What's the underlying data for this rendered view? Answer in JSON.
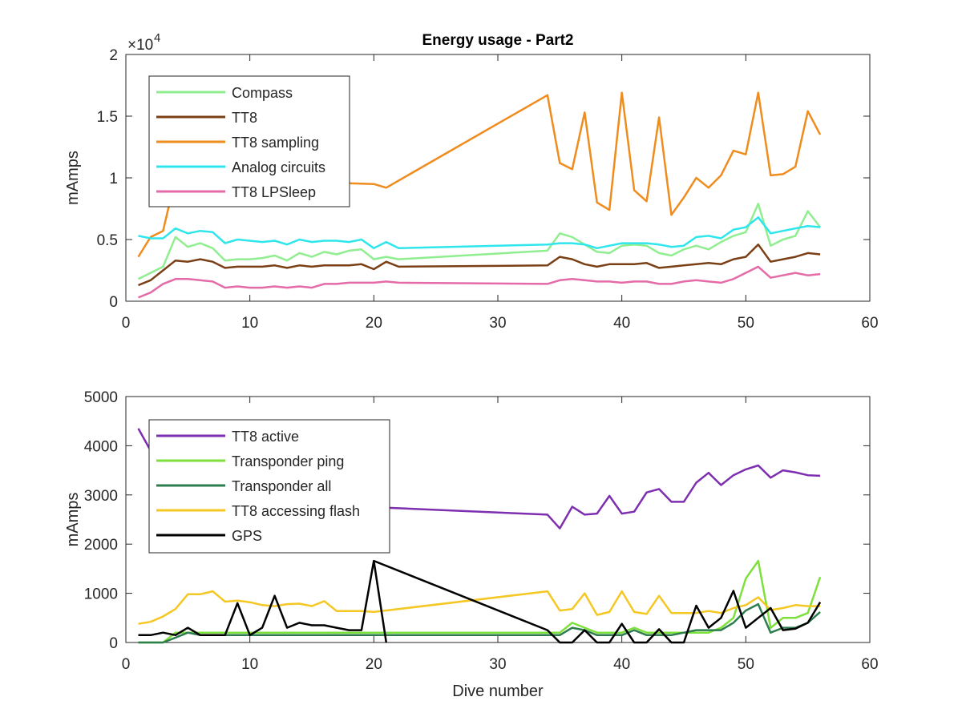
{
  "figure": {
    "title": "Energy usage - Part2",
    "xlabel": "Dive number"
  },
  "chart_data": [
    {
      "type": "line",
      "title": "Energy usage - Part2",
      "xlabel": "",
      "ylabel": "mAmps",
      "xlim": [
        0,
        60
      ],
      "ylim": [
        0,
        20000
      ],
      "xticks": [
        "0",
        "10",
        "20",
        "30",
        "40",
        "50",
        "60"
      ],
      "yticks": [
        "0",
        "0.5",
        "1",
        "1.5",
        "2"
      ],
      "exponent_label": "×10",
      "exponent_power": "4",
      "legend_position": "top-left",
      "grid": false,
      "series": [
        {
          "name": "Compass",
          "color": "#90ee90",
          "x": [
            1,
            2,
            3,
            4,
            5,
            6,
            7,
            8,
            9,
            10,
            11,
            12,
            13,
            14,
            15,
            16,
            17,
            18,
            19,
            20,
            21,
            22,
            34,
            35,
            36,
            37,
            38,
            39,
            40,
            41,
            42,
            43,
            44,
            45,
            46,
            47,
            48,
            49,
            50,
            51,
            52,
            53,
            54,
            55,
            56
          ],
          "y": [
            1800,
            2300,
            2800,
            5200,
            4400,
            4700,
            4300,
            3300,
            3400,
            3400,
            3500,
            3700,
            3300,
            3900,
            3600,
            4000,
            3800,
            4100,
            4200,
            3400,
            3600,
            3400,
            4100,
            5500,
            5200,
            4600,
            4000,
            3900,
            4500,
            4600,
            4500,
            3900,
            3700,
            4200,
            4500,
            4200,
            4800,
            5300,
            5600,
            7900,
            4500,
            5000,
            5300,
            7300,
            6000
          ]
        },
        {
          "name": "TT8",
          "color": "#7b3f16",
          "x": [
            1,
            2,
            3,
            4,
            5,
            6,
            7,
            8,
            9,
            10,
            11,
            12,
            13,
            14,
            15,
            16,
            17,
            18,
            19,
            20,
            21,
            22,
            34,
            35,
            36,
            37,
            38,
            39,
            40,
            41,
            42,
            43,
            44,
            45,
            46,
            47,
            48,
            49,
            50,
            51,
            52,
            53,
            54,
            55,
            56
          ],
          "y": [
            1300,
            1700,
            2500,
            3300,
            3200,
            3400,
            3200,
            2700,
            2800,
            2800,
            2800,
            2900,
            2700,
            2900,
            2800,
            2900,
            2900,
            2900,
            3000,
            2600,
            3200,
            2800,
            2900,
            3600,
            3400,
            3000,
            2800,
            3000,
            3000,
            3000,
            3100,
            2700,
            2800,
            2900,
            3000,
            3100,
            3000,
            3400,
            3600,
            4600,
            3200,
            3400,
            3600,
            3900,
            3800
          ]
        },
        {
          "name": "TT8 sampling",
          "color": "#ef8c1e",
          "x": [
            1,
            2,
            3,
            4,
            20,
            21,
            34,
            35,
            36,
            37,
            38,
            39,
            40,
            41,
            42,
            43,
            44,
            45,
            46,
            47,
            48,
            49,
            50,
            51,
            52,
            53,
            54,
            55,
            56
          ],
          "y": [
            3600,
            5200,
            5700,
            10000,
            9500,
            9200,
            16700,
            11200,
            10700,
            15300,
            8000,
            7400,
            16900,
            9000,
            8100,
            14900,
            7000,
            8400,
            10000,
            9200,
            10200,
            12200,
            11900,
            16900,
            10200,
            10300,
            10900,
            15400,
            13500
          ]
        },
        {
          "name": "Analog circuits",
          "color": "#2ee6ec",
          "x": [
            1,
            2,
            3,
            4,
            5,
            6,
            7,
            8,
            9,
            10,
            11,
            12,
            13,
            14,
            15,
            16,
            17,
            18,
            19,
            20,
            21,
            22,
            34,
            35,
            36,
            37,
            38,
            39,
            40,
            41,
            42,
            43,
            44,
            45,
            46,
            47,
            48,
            49,
            50,
            51,
            52,
            53,
            54,
            55,
            56
          ],
          "y": [
            5300,
            5100,
            5100,
            5900,
            5500,
            5700,
            5600,
            4700,
            5000,
            4900,
            4800,
            4900,
            4600,
            5000,
            4800,
            4900,
            4900,
            4800,
            5000,
            4300,
            4800,
            4300,
            4600,
            4700,
            4700,
            4600,
            4300,
            4500,
            4700,
            4700,
            4700,
            4600,
            4400,
            4500,
            5200,
            5300,
            5100,
            5800,
            6000,
            6800,
            5500,
            5700,
            5900,
            6100,
            6000
          ]
        },
        {
          "name": "TT8 LPSleep",
          "color": "#e46aa8",
          "x": [
            1,
            2,
            3,
            4,
            5,
            6,
            7,
            8,
            9,
            10,
            11,
            12,
            13,
            14,
            15,
            16,
            17,
            18,
            19,
            20,
            21,
            22,
            34,
            35,
            36,
            37,
            38,
            39,
            40,
            41,
            42,
            43,
            44,
            45,
            46,
            47,
            48,
            49,
            50,
            51,
            52,
            53,
            54,
            55,
            56
          ],
          "y": [
            300,
            700,
            1400,
            1800,
            1800,
            1700,
            1600,
            1100,
            1200,
            1100,
            1100,
            1200,
            1100,
            1200,
            1100,
            1400,
            1400,
            1500,
            1500,
            1500,
            1600,
            1500,
            1400,
            1700,
            1800,
            1700,
            1600,
            1600,
            1500,
            1600,
            1600,
            1400,
            1400,
            1600,
            1700,
            1600,
            1500,
            1800,
            2300,
            2800,
            1900,
            2100,
            2300,
            2100,
            2200
          ]
        }
      ]
    },
    {
      "type": "line",
      "title": "",
      "xlabel": "Dive number",
      "ylabel": "mAmps",
      "xlim": [
        0,
        60
      ],
      "ylim": [
        0,
        5000
      ],
      "xticks": [
        "0",
        "10",
        "20",
        "30",
        "40",
        "50",
        "60"
      ],
      "yticks": [
        "0",
        "1000",
        "2000",
        "3000",
        "4000",
        "5000"
      ],
      "legend_position": "top-left",
      "grid": false,
      "series": [
        {
          "name": "TT8 active",
          "color": "#7e2fb0",
          "x": [
            1,
            2,
            20,
            34,
            35,
            36,
            37,
            38,
            39,
            40,
            41,
            42,
            43,
            44,
            45,
            46,
            47,
            48,
            49,
            50,
            51,
            52,
            53,
            54,
            55,
            56
          ],
          "y": [
            4350,
            3900,
            2750,
            2600,
            2320,
            2760,
            2600,
            2620,
            2980,
            2620,
            2660,
            3050,
            3120,
            2860,
            2860,
            3250,
            3450,
            3200,
            3400,
            3520,
            3600,
            3350,
            3500,
            3460,
            3400,
            3390
          ]
        },
        {
          "name": "Transponder ping",
          "color": "#7ee03c",
          "x": [
            1,
            2,
            3,
            4,
            5,
            6,
            7,
            8,
            9,
            10,
            11,
            12,
            13,
            14,
            15,
            16,
            17,
            18,
            19,
            20,
            21,
            22,
            34,
            35,
            36,
            37,
            38,
            39,
            40,
            41,
            42,
            43,
            44,
            45,
            46,
            47,
            48,
            49,
            50,
            51,
            52,
            53,
            54,
            55,
            56
          ],
          "y": [
            0,
            0,
            0,
            200,
            200,
            200,
            200,
            200,
            200,
            200,
            200,
            200,
            200,
            200,
            200,
            200,
            200,
            200,
            200,
            200,
            200,
            200,
            200,
            200,
            400,
            300,
            200,
            200,
            200,
            300,
            200,
            200,
            200,
            200,
            200,
            200,
            300,
            500,
            1300,
            1660,
            300,
            500,
            500,
            600,
            1330
          ]
        },
        {
          "name": "Transponder all",
          "color": "#2e7d4f",
          "x": [
            1,
            2,
            3,
            4,
            5,
            6,
            7,
            8,
            9,
            10,
            11,
            12,
            13,
            14,
            15,
            16,
            17,
            18,
            19,
            20,
            21,
            22,
            34,
            35,
            36,
            37,
            38,
            39,
            40,
            41,
            42,
            43,
            44,
            45,
            46,
            47,
            48,
            49,
            50,
            51,
            52,
            53,
            54,
            55,
            56
          ],
          "y": [
            0,
            0,
            0,
            100,
            200,
            150,
            150,
            150,
            150,
            150,
            150,
            150,
            150,
            150,
            150,
            150,
            150,
            150,
            150,
            150,
            150,
            150,
            150,
            150,
            300,
            250,
            150,
            150,
            150,
            250,
            150,
            150,
            150,
            200,
            250,
            250,
            250,
            400,
            650,
            780,
            200,
            300,
            300,
            400,
            620
          ]
        },
        {
          "name": "TT8 accessing flash",
          "color": "#f5c722",
          "x": [
            1,
            2,
            3,
            4,
            5,
            6,
            7,
            8,
            9,
            10,
            11,
            12,
            13,
            14,
            15,
            16,
            17,
            18,
            19,
            20,
            34,
            35,
            36,
            37,
            38,
            39,
            40,
            41,
            42,
            43,
            44,
            45,
            46,
            47,
            48,
            49,
            50,
            51,
            52,
            53,
            54,
            55,
            56
          ],
          "y": [
            380,
            420,
            530,
            680,
            980,
            980,
            1040,
            830,
            850,
            820,
            760,
            740,
            780,
            790,
            740,
            840,
            640,
            640,
            640,
            620,
            1040,
            650,
            680,
            1000,
            560,
            620,
            1040,
            620,
            580,
            950,
            600,
            600,
            600,
            640,
            600,
            700,
            760,
            920,
            660,
            700,
            760,
            740,
            740
          ]
        },
        {
          "name": "GPS",
          "color": "#000000",
          "x": [
            1,
            2,
            3,
            4,
            5,
            6,
            7,
            8,
            9,
            10,
            11,
            12,
            13,
            14,
            15,
            16,
            17,
            18,
            19,
            20,
            34,
            35,
            36,
            37,
            38,
            39,
            40,
            41,
            42,
            43,
            44,
            45,
            46,
            47,
            48,
            49,
            50,
            51,
            52,
            53,
            54,
            55,
            56
          ],
          "y": [
            150,
            150,
            200,
            150,
            300,
            150,
            150,
            150,
            800,
            150,
            300,
            950,
            300,
            400,
            350,
            350,
            300,
            250,
            250,
            1660,
            250,
            0,
            0,
            250,
            0,
            0,
            380,
            0,
            0,
            270,
            0,
            0,
            750,
            300,
            500,
            1050,
            300,
            500,
            700,
            250,
            280,
            400,
            820
          ]
        },
        {
          "name": "",
          "color": "#000000",
          "x": [
            20,
            21
          ],
          "y": [
            1660,
            0
          ]
        }
      ]
    }
  ]
}
